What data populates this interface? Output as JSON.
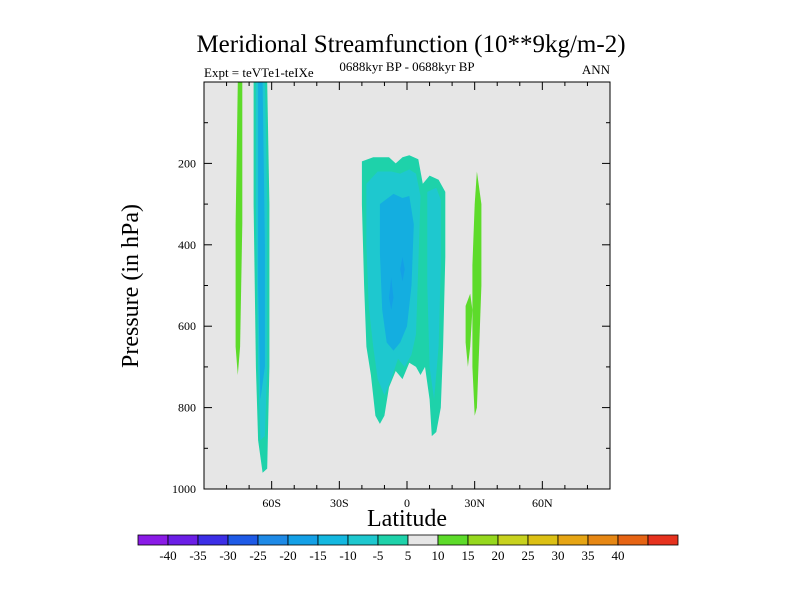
{
  "chart_data": {
    "type": "contour",
    "title": "Meridional Streamfunction (10**9kg/m-2)",
    "subtitle_left": "Expt = teVTe1-teIXe",
    "subtitle_center": "0688kyr BP - 0688kyr BP",
    "subtitle_right": "ANN",
    "xlabel": "Latitude",
    "ylabel": "Pressure (in hPa)",
    "xlim": [
      -90,
      90
    ],
    "ylim": [
      1000,
      0
    ],
    "x_ticks": [
      {
        "value": -60,
        "label": "60S"
      },
      {
        "value": -30,
        "label": "30S"
      },
      {
        "value": 0,
        "label": "0"
      },
      {
        "value": 30,
        "label": "30N"
      },
      {
        "value": 60,
        "label": "60N"
      }
    ],
    "y_ticks": [
      {
        "value": 200,
        "label": "200"
      },
      {
        "value": 400,
        "label": "400"
      },
      {
        "value": 600,
        "label": "600"
      },
      {
        "value": 800,
        "label": "800"
      },
      {
        "value": 1000,
        "label": "1000"
      }
    ],
    "background_color": "#e6e6e6",
    "contour_regions": [
      {
        "level": 5,
        "color": "#5ddb2a",
        "points": [
          [
            -75,
            0
          ],
          [
            -73,
            0
          ],
          [
            -73,
            350
          ],
          [
            -74,
            650
          ],
          [
            -75,
            720
          ],
          [
            -76,
            650
          ],
          [
            -76,
            350
          ]
        ]
      },
      {
        "level": -5,
        "color": "#1ed2aa",
        "points": [
          [
            -68,
            0
          ],
          [
            -62,
            0
          ],
          [
            -61,
            300
          ],
          [
            -61,
            700
          ],
          [
            -62,
            950
          ],
          [
            -64,
            960
          ],
          [
            -66,
            880
          ],
          [
            -67,
            700
          ],
          [
            -68,
            300
          ]
        ]
      },
      {
        "level": -10,
        "color": "#1ec8cf",
        "points": [
          [
            -67,
            0
          ],
          [
            -63,
            0
          ],
          [
            -62,
            300
          ],
          [
            -62,
            700
          ],
          [
            -63,
            870
          ],
          [
            -65,
            880
          ],
          [
            -66,
            700
          ],
          [
            -67,
            300
          ]
        ]
      },
      {
        "level": -15,
        "color": "#14aee0",
        "points": [
          [
            -66,
            0
          ],
          [
            -64,
            0
          ],
          [
            -63,
            400
          ],
          [
            -63,
            700
          ],
          [
            -65,
            780
          ],
          [
            -66,
            500
          ]
        ]
      },
      {
        "level": -5,
        "color": "#1ed2aa",
        "points": [
          [
            -20,
            195
          ],
          [
            -15,
            185
          ],
          [
            -8,
            185
          ],
          [
            -5,
            200
          ],
          [
            -2,
            185
          ],
          [
            1,
            180
          ],
          [
            5,
            190
          ],
          [
            7,
            250
          ],
          [
            10,
            230
          ],
          [
            14,
            240
          ],
          [
            17,
            270
          ],
          [
            17,
            430
          ],
          [
            16,
            650
          ],
          [
            15,
            800
          ],
          [
            13,
            860
          ],
          [
            11,
            870
          ],
          [
            10,
            780
          ],
          [
            8,
            700
          ],
          [
            6,
            720
          ],
          [
            4,
            700
          ],
          [
            1,
            690
          ],
          [
            -2,
            730
          ],
          [
            -5,
            710
          ],
          [
            -8,
            750
          ],
          [
            -10,
            820
          ],
          [
            -12,
            840
          ],
          [
            -14,
            820
          ],
          [
            -16,
            720
          ],
          [
            -18,
            650
          ],
          [
            -19,
            500
          ],
          [
            -20,
            300
          ]
        ]
      },
      {
        "level": -10,
        "color": "#1ec8cf",
        "points": [
          [
            -18,
            250
          ],
          [
            -13,
            220
          ],
          [
            -7,
            220
          ],
          [
            -3,
            225
          ],
          [
            1,
            215
          ],
          [
            4,
            225
          ],
          [
            6,
            280
          ],
          [
            5,
            450
          ],
          [
            4,
            620
          ],
          [
            2,
            670
          ],
          [
            -1,
            700
          ],
          [
            -4,
            680
          ],
          [
            -7,
            730
          ],
          [
            -10,
            770
          ],
          [
            -13,
            730
          ],
          [
            -15,
            650
          ],
          [
            -17,
            550
          ],
          [
            -18,
            400
          ]
        ]
      },
      {
        "level": -10,
        "color": "#1ec8cf",
        "points": [
          [
            9,
            270
          ],
          [
            13,
            260
          ],
          [
            15,
            290
          ],
          [
            15,
            450
          ],
          [
            14,
            650
          ],
          [
            12,
            780
          ],
          [
            10,
            700
          ],
          [
            9,
            500
          ]
        ]
      },
      {
        "level": -15,
        "color": "#14aee0",
        "points": [
          [
            -12,
            300
          ],
          [
            -6,
            275
          ],
          [
            -2,
            285
          ],
          [
            1,
            280
          ],
          [
            3,
            350
          ],
          [
            2,
            500
          ],
          [
            0,
            600
          ],
          [
            -3,
            640
          ],
          [
            -6,
            660
          ],
          [
            -9,
            640
          ],
          [
            -11,
            560
          ],
          [
            -12,
            420
          ]
        ]
      },
      {
        "level": -20,
        "color": "#14a0e6",
        "points": [
          [
            -7,
            480
          ],
          [
            -6,
            530
          ],
          [
            -7,
            560
          ],
          [
            -8,
            530
          ]
        ]
      },
      {
        "level": -20,
        "color": "#14a0e6",
        "points": [
          [
            -2,
            430
          ],
          [
            -1,
            460
          ],
          [
            -2,
            490
          ],
          [
            -3,
            460
          ]
        ]
      },
      {
        "level": 5,
        "color": "#5ddb2a",
        "points": [
          [
            31,
            220
          ],
          [
            33,
            300
          ],
          [
            33,
            500
          ],
          [
            32,
            650
          ],
          [
            31,
            800
          ],
          [
            30,
            820
          ],
          [
            29,
            700
          ],
          [
            29,
            450
          ],
          [
            30,
            300
          ]
        ]
      },
      {
        "level": 5,
        "color": "#5ddb2a",
        "points": [
          [
            26,
            550
          ],
          [
            28,
            520
          ],
          [
            29,
            560
          ],
          [
            28,
            650
          ],
          [
            27,
            700
          ],
          [
            26,
            640
          ]
        ]
      }
    ],
    "colorbar": {
      "labels": [
        "-40",
        "-35",
        "-30",
        "-25",
        "-20",
        "-15",
        "-10",
        "-5",
        "5",
        "10",
        "15",
        "20",
        "25",
        "30",
        "35",
        "40"
      ],
      "colors": [
        "#8a1be6",
        "#6b1ee6",
        "#3c2ee6",
        "#1e5ae6",
        "#1e8ae6",
        "#14a0e6",
        "#14b8e0",
        "#1ec8cf",
        "#1ed2aa",
        "#e6e6e6",
        "#5ddb2a",
        "#96d81e",
        "#c8d21e",
        "#dcc014",
        "#e6a514",
        "#e68714",
        "#e66414",
        "#e6321e"
      ]
    }
  }
}
